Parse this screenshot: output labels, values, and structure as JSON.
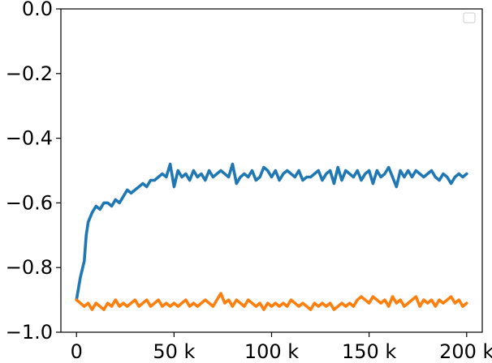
{
  "chart_data": {
    "type": "line",
    "title": "",
    "xlabel": "",
    "ylabel": "",
    "xlim": [
      -8000,
      208000
    ],
    "ylim": [
      -1.0,
      0.0
    ],
    "x_ticks": [
      0,
      50000,
      100000,
      150000,
      200000
    ],
    "x_tick_labels": [
      "0",
      "50 k",
      "100 k",
      "150 k",
      "200 k"
    ],
    "y_ticks": [
      0.0,
      -0.2,
      -0.4,
      -0.6,
      -0.8,
      -1.0
    ],
    "y_tick_labels": [
      "0.0",
      "−0.2",
      "−0.4",
      "−0.6",
      "−0.8",
      "−1.0"
    ],
    "grid": false,
    "legend": {
      "placement": "top-right",
      "entries": []
    },
    "series": [
      {
        "color": "#1f77b4",
        "x": [
          0,
          2000,
          4000,
          5000,
          6000,
          8000,
          10000,
          12000,
          14000,
          16000,
          18000,
          20000,
          22000,
          24000,
          26000,
          28000,
          30000,
          32000,
          34000,
          36000,
          38000,
          40000,
          42000,
          44000,
          46000,
          48000,
          50000,
          52000,
          54000,
          56000,
          58000,
          60000,
          62000,
          64000,
          66000,
          68000,
          70000,
          72000,
          74000,
          76000,
          78000,
          80000,
          82000,
          84000,
          86000,
          88000,
          90000,
          92000,
          94000,
          96000,
          98000,
          100000,
          102000,
          104000,
          106000,
          108000,
          110000,
          112000,
          114000,
          116000,
          118000,
          120000,
          122000,
          124000,
          126000,
          128000,
          130000,
          132000,
          134000,
          136000,
          138000,
          140000,
          142000,
          144000,
          146000,
          148000,
          150000,
          152000,
          154000,
          156000,
          158000,
          160000,
          162000,
          164000,
          166000,
          168000,
          170000,
          172000,
          174000,
          176000,
          178000,
          180000,
          182000,
          184000,
          186000,
          188000,
          190000,
          192000,
          194000,
          196000,
          198000,
          200000
        ],
        "values": [
          -0.9,
          -0.83,
          -0.78,
          -0.7,
          -0.66,
          -0.63,
          -0.61,
          -0.62,
          -0.6,
          -0.6,
          -0.61,
          -0.59,
          -0.6,
          -0.58,
          -0.56,
          -0.57,
          -0.56,
          -0.55,
          -0.54,
          -0.55,
          -0.53,
          -0.53,
          -0.52,
          -0.51,
          -0.52,
          -0.48,
          -0.55,
          -0.5,
          -0.52,
          -0.51,
          -0.53,
          -0.5,
          -0.52,
          -0.51,
          -0.53,
          -0.5,
          -0.52,
          -0.51,
          -0.5,
          -0.51,
          -0.52,
          -0.48,
          -0.54,
          -0.52,
          -0.51,
          -0.52,
          -0.5,
          -0.53,
          -0.52,
          -0.49,
          -0.5,
          -0.52,
          -0.5,
          -0.53,
          -0.51,
          -0.5,
          -0.51,
          -0.52,
          -0.5,
          -0.53,
          -0.52,
          -0.52,
          -0.51,
          -0.5,
          -0.53,
          -0.51,
          -0.5,
          -0.54,
          -0.49,
          -0.53,
          -0.5,
          -0.51,
          -0.52,
          -0.5,
          -0.53,
          -0.51,
          -0.5,
          -0.54,
          -0.5,
          -0.52,
          -0.51,
          -0.49,
          -0.52,
          -0.55,
          -0.5,
          -0.52,
          -0.5,
          -0.52,
          -0.5,
          -0.51,
          -0.52,
          -0.51,
          -0.5,
          -0.52,
          -0.53,
          -0.51,
          -0.52,
          -0.54,
          -0.52,
          -0.51,
          -0.52,
          -0.51
        ]
      },
      {
        "color": "#ff7f0e",
        "x": [
          0,
          2000,
          4000,
          6000,
          8000,
          10000,
          12000,
          14000,
          16000,
          18000,
          20000,
          22000,
          24000,
          26000,
          28000,
          30000,
          32000,
          34000,
          36000,
          38000,
          40000,
          42000,
          44000,
          46000,
          48000,
          50000,
          52000,
          54000,
          56000,
          58000,
          60000,
          62000,
          64000,
          66000,
          68000,
          70000,
          72000,
          74000,
          76000,
          78000,
          80000,
          82000,
          84000,
          86000,
          88000,
          90000,
          92000,
          94000,
          96000,
          98000,
          100000,
          102000,
          104000,
          106000,
          108000,
          110000,
          112000,
          114000,
          116000,
          118000,
          120000,
          122000,
          124000,
          126000,
          128000,
          130000,
          132000,
          134000,
          136000,
          138000,
          140000,
          142000,
          144000,
          146000,
          148000,
          150000,
          152000,
          154000,
          156000,
          158000,
          160000,
          162000,
          164000,
          166000,
          168000,
          170000,
          172000,
          174000,
          176000,
          178000,
          180000,
          182000,
          184000,
          186000,
          188000,
          190000,
          192000,
          194000,
          196000,
          198000,
          200000
        ],
        "values": [
          -0.9,
          -0.91,
          -0.92,
          -0.91,
          -0.93,
          -0.91,
          -0.92,
          -0.93,
          -0.91,
          -0.92,
          -0.9,
          -0.92,
          -0.91,
          -0.92,
          -0.91,
          -0.9,
          -0.92,
          -0.91,
          -0.9,
          -0.92,
          -0.91,
          -0.9,
          -0.92,
          -0.91,
          -0.92,
          -0.91,
          -0.92,
          -0.91,
          -0.9,
          -0.92,
          -0.91,
          -0.92,
          -0.91,
          -0.9,
          -0.91,
          -0.92,
          -0.9,
          -0.88,
          -0.91,
          -0.9,
          -0.92,
          -0.9,
          -0.91,
          -0.92,
          -0.9,
          -0.91,
          -0.92,
          -0.91,
          -0.93,
          -0.91,
          -0.92,
          -0.91,
          -0.92,
          -0.91,
          -0.92,
          -0.9,
          -0.91,
          -0.92,
          -0.91,
          -0.92,
          -0.93,
          -0.91,
          -0.92,
          -0.91,
          -0.92,
          -0.91,
          -0.93,
          -0.92,
          -0.91,
          -0.92,
          -0.91,
          -0.92,
          -0.9,
          -0.89,
          -0.9,
          -0.91,
          -0.89,
          -0.9,
          -0.91,
          -0.9,
          -0.92,
          -0.89,
          -0.91,
          -0.9,
          -0.92,
          -0.91,
          -0.9,
          -0.89,
          -0.92,
          -0.9,
          -0.91,
          -0.9,
          -0.92,
          -0.9,
          -0.91,
          -0.9,
          -0.89,
          -0.91,
          -0.9,
          -0.92,
          -0.91
        ]
      }
    ]
  }
}
